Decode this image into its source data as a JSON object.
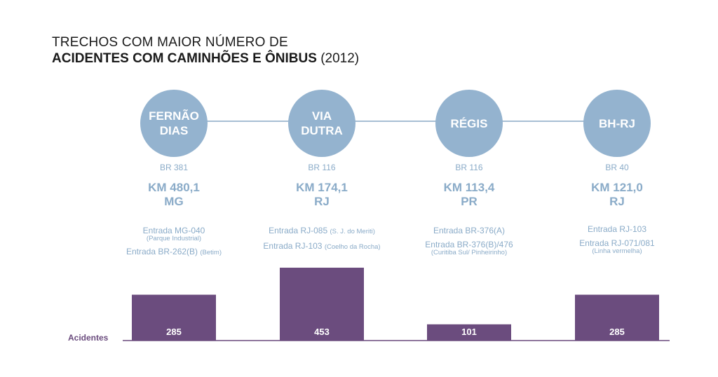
{
  "title": {
    "line1": "TRECHOS COM MAIOR NÚMERO DE",
    "line2_bold": "ACIDENTES COM CAMINHÕES E ÔNIBUS",
    "line2_rest": "(2012)"
  },
  "colors": {
    "circle": "#94b3cf",
    "text_blue": "#8aabc8",
    "bar": "#6b4c7e",
    "baseline": "#6b4c7e"
  },
  "sections": [
    {
      "name_lines": [
        "FERNÃO",
        "DIAS"
      ],
      "road": "BR 381",
      "km_lines": [
        "KM 480,1",
        "MG"
      ],
      "entries": [
        {
          "main": "Entrada MG-040",
          "small": "",
          "sub": "(Parque Industrial)"
        },
        {
          "main": "Entrada BR-262(B)",
          "small": "(Betim)",
          "sub": ""
        }
      ]
    },
    {
      "name_lines": [
        "VIA",
        "DUTRA"
      ],
      "road": "BR 116",
      "km_lines": [
        "KM 174,1",
        "RJ"
      ],
      "entries": [
        {
          "main": "Entrada RJ-085",
          "small": "(S. J. do Meriti)",
          "sub": ""
        },
        {
          "main": "Entrada RJ-103",
          "small": "(Coelho da Rocha)",
          "sub": ""
        }
      ]
    },
    {
      "name_lines": [
        "RÉGIS"
      ],
      "road": "BR 116",
      "km_lines": [
        "KM 113,4",
        "PR"
      ],
      "entries": [
        {
          "main": "Entrada BR-376(A)",
          "small": "",
          "sub": ""
        },
        {
          "main": "Entrada BR-376(B)/476",
          "small": "",
          "sub": "(Curitiba Sul/ Pinheirinho)"
        }
      ]
    },
    {
      "name_lines": [
        "BH-RJ"
      ],
      "road": "BR 40",
      "km_lines": [
        "KM 121,0",
        "RJ"
      ],
      "entries": [
        {
          "main": "Entrada RJ-103",
          "small": "",
          "sub": ""
        },
        {
          "main": "Entrada RJ-071/081",
          "small": "",
          "sub": "(Linha vermelha)"
        }
      ]
    }
  ],
  "chart_data": {
    "type": "bar",
    "categories": [
      "FERNÃO DIAS",
      "VIA DUTRA",
      "RÉGIS",
      "BH-RJ"
    ],
    "series": [
      {
        "name": "Acidentes",
        "values": [
          285,
          453,
          101,
          285
        ]
      }
    ],
    "title": "TRECHOS COM MAIOR NÚMERO DE ACIDENTES COM CAMINHÕES E ÔNIBUS (2012)",
    "ylim": [
      0,
      453
    ],
    "grid": false,
    "legend": "none"
  }
}
